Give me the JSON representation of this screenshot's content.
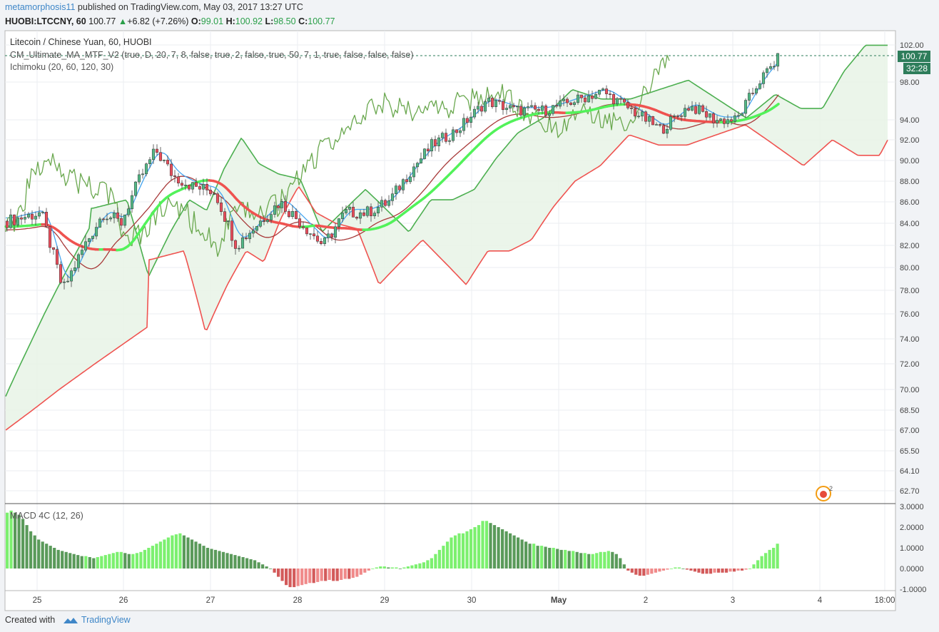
{
  "header": {
    "username": "metamorphosis11",
    "published_text": " published on TradingView.com, May 03, 2017 13:27 UTC"
  },
  "quote": {
    "symbol": "HUOBI:LTCCNY, 60",
    "last": "100.77",
    "change_arrow": "▲",
    "change": "+6.82 (+7.26%)",
    "open_label": "O:",
    "open": "99.01",
    "high_label": "H:",
    "high": "100.92",
    "low_label": "L:",
    "low": "98.50",
    "close_label": "C:",
    "close": "100.77"
  },
  "legend": {
    "title": "Litecoin / Chinese Yuan, 60, HUOBI",
    "ma_indicator": "CM_Ultimate_MA_MTF_V2 (true, D, 20, 7, 8, false, true, 2, false, true, 50, 7, 1, true, false, false, false)",
    "ichimoku": "Ichimoku (20, 60, 120, 30)",
    "macd": "MACD 4C (12, 26)"
  },
  "price_badges": {
    "last_price": "100.77",
    "countdown": "32:28"
  },
  "colors": {
    "up_candle": "#53b987",
    "down_candle": "#eb4d5c",
    "ma_up": "#52f25a",
    "ma_down": "#ef5350",
    "tenkan": "#46a5f0",
    "kijun": "#a83a3a",
    "chikou": "#6aa84f",
    "span_a": "#4caf50",
    "span_b": "#ef5350",
    "cloud": "#e8f3e6",
    "last_price_line": "#2e7d5b",
    "macd_strong_up": "#7cf06f",
    "macd_weak_up": "#5a9a5a",
    "macd_strong_down": "#d35a5a",
    "macd_weak_down": "#f08a8a"
  },
  "footer": {
    "created_with": "Created with",
    "brand": "TradingView"
  },
  "chart_data": [
    {
      "type": "candlestick",
      "title": "Litecoin / Chinese Yuan, 60, HUOBI",
      "y_axis_ticks": [
        "102.00",
        "98.00",
        "94.00",
        "92.00",
        "90.00",
        "88.00",
        "86.00",
        "84.00",
        "82.00",
        "80.00",
        "78.00",
        "76.00",
        "74.00",
        "72.00",
        "70.00",
        "68.50",
        "67.00",
        "65.50",
        "64.10",
        "62.70"
      ],
      "x_axis_ticks": [
        "25",
        "26",
        "27",
        "28",
        "29",
        "30",
        "May",
        "2",
        "3",
        "4",
        "18:00"
      ],
      "last_price": 100.77,
      "close_path": [
        [
          "25",
          84.2
        ],
        [
          "25",
          85.0
        ],
        [
          "25",
          78.0
        ],
        [
          "25",
          82.0
        ],
        [
          "26",
          85.0
        ],
        [
          "26",
          84.0
        ],
        [
          "26",
          88.0
        ],
        [
          "26",
          91.0
        ],
        [
          "26",
          88.5
        ],
        [
          "27",
          87.5
        ],
        [
          "27",
          87.0
        ],
        [
          "27",
          82.0
        ],
        [
          "27",
          84.0
        ],
        [
          "28",
          86.0
        ],
        [
          "28",
          84.0
        ],
        [
          "28",
          82.0
        ],
        [
          "28",
          85.0
        ],
        [
          "29",
          85.0
        ],
        [
          "29",
          86.0
        ],
        [
          "29",
          89.0
        ],
        [
          "29",
          91.5
        ],
        [
          "30",
          93.0
        ],
        [
          "30",
          96.0
        ],
        [
          "30",
          95.0
        ],
        [
          "May",
          95.0
        ],
        [
          "May",
          96.0
        ],
        [
          "May",
          97.0
        ],
        [
          "2",
          95.0
        ],
        [
          "2",
          93.0
        ],
        [
          "2",
          95.5
        ],
        [
          "3",
          94.0
        ],
        [
          "3",
          94.0
        ],
        [
          "3",
          98.0
        ],
        [
          "3",
          100.77
        ]
      ]
    },
    {
      "type": "bar",
      "title": "MACD 4C (12, 26)",
      "y_axis_ticks": [
        "3.0000",
        "2.0000",
        "1.0000",
        "0.0000",
        "-1.0000"
      ],
      "ylim": [
        -1.0,
        3.0
      ],
      "values": [
        2.7,
        2.8,
        2.7,
        2.6,
        2.4,
        2.1,
        1.8,
        1.6,
        1.4,
        1.3,
        1.2,
        1.1,
        1.0,
        0.9,
        0.85,
        0.8,
        0.75,
        0.7,
        0.65,
        0.6,
        0.6,
        0.55,
        0.5,
        0.55,
        0.6,
        0.65,
        0.7,
        0.75,
        0.8,
        0.8,
        0.75,
        0.7,
        0.7,
        0.75,
        0.8,
        0.9,
        1.0,
        1.1,
        1.2,
        1.3,
        1.4,
        1.5,
        1.6,
        1.65,
        1.7,
        1.6,
        1.5,
        1.4,
        1.3,
        1.2,
        1.1,
        1.0,
        0.95,
        0.9,
        0.85,
        0.8,
        0.75,
        0.7,
        0.65,
        0.6,
        0.55,
        0.5,
        0.45,
        0.4,
        0.3,
        0.2,
        0.1,
        0.0,
        -0.2,
        -0.4,
        -0.6,
        -0.8,
        -0.9,
        -0.9,
        -0.85,
        -0.8,
        -0.75,
        -0.7,
        -0.7,
        -0.65,
        -0.6,
        -0.6,
        -0.55,
        -0.6,
        -0.6,
        -0.55,
        -0.5,
        -0.5,
        -0.45,
        -0.4,
        -0.3,
        -0.2,
        -0.1,
        0.0,
        0.05,
        0.1,
        0.1,
        0.05,
        0.05,
        0.05,
        0.0,
        0.05,
        0.1,
        0.15,
        0.2,
        0.25,
        0.3,
        0.4,
        0.5,
        0.7,
        0.9,
        1.1,
        1.3,
        1.5,
        1.6,
        1.7,
        1.7,
        1.8,
        1.9,
        2.0,
        2.1,
        2.3,
        2.3,
        2.2,
        2.1,
        2.0,
        1.9,
        1.8,
        1.7,
        1.6,
        1.5,
        1.4,
        1.3,
        1.2,
        1.2,
        1.1,
        1.1,
        1.05,
        1.0,
        1.0,
        0.95,
        0.9,
        0.9,
        0.85,
        0.85,
        0.8,
        0.75,
        0.75,
        0.7,
        0.7,
        0.75,
        0.8,
        0.8,
        0.85,
        0.8,
        0.7,
        0.5,
        0.2,
        -0.1,
        -0.2,
        -0.3,
        -0.35,
        -0.35,
        -0.3,
        -0.25,
        -0.2,
        -0.15,
        -0.1,
        -0.05,
        0.0,
        0.05,
        0.05,
        0.0,
        -0.05,
        -0.1,
        -0.15,
        -0.2,
        -0.25,
        -0.25,
        -0.25,
        -0.2,
        -0.2,
        -0.2,
        -0.2,
        -0.15,
        -0.15,
        -0.1,
        -0.1,
        -0.05,
        0.0,
        0.2,
        0.4,
        0.6,
        0.75,
        0.9,
        1.0,
        1.2
      ]
    }
  ]
}
